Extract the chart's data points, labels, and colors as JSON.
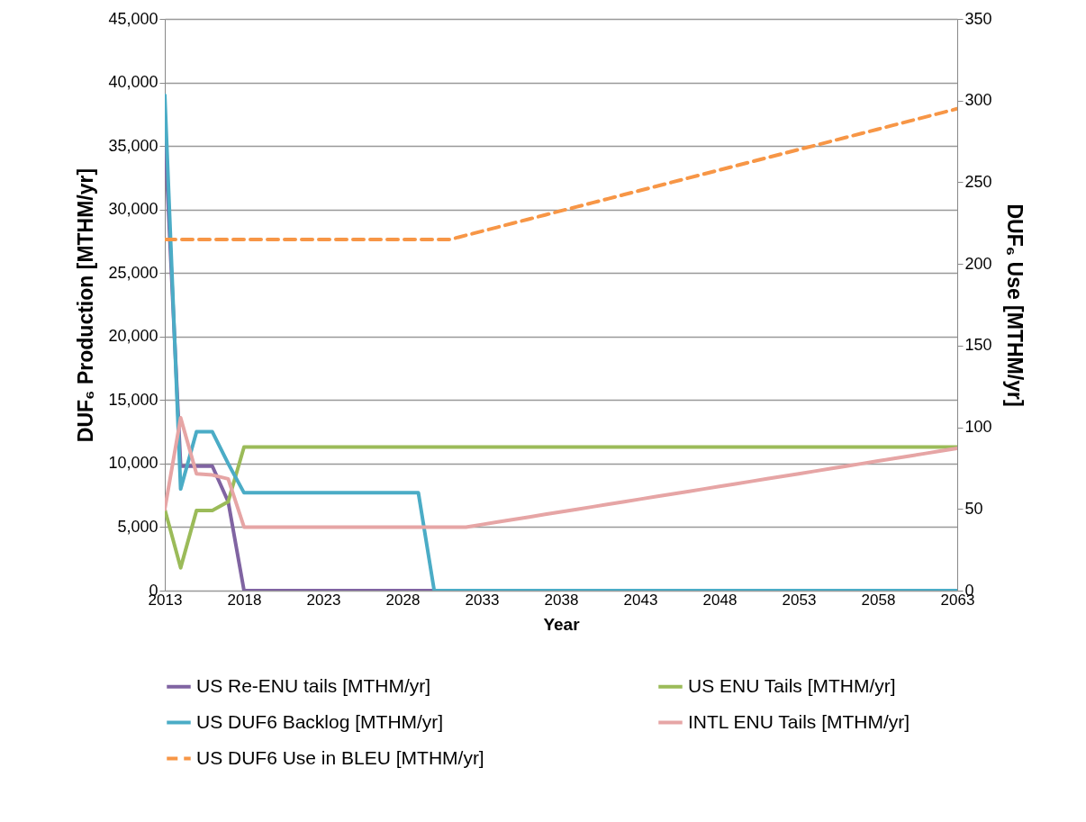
{
  "chart_data": {
    "type": "line",
    "xlabel": "Year",
    "ylabel": "DUF₆ Production [MTHM/yr]",
    "y2label": "DUF₆  Use [MTHM/yr]",
    "x": [
      2013,
      2014,
      2015,
      2016,
      2017,
      2018,
      2019,
      2020,
      2021,
      2022,
      2023,
      2024,
      2025,
      2026,
      2027,
      2028,
      2029,
      2030,
      2031,
      2032,
      2033,
      2034,
      2035,
      2036,
      2037,
      2038,
      2039,
      2040,
      2041,
      2042,
      2043,
      2044,
      2045,
      2046,
      2047,
      2048,
      2049,
      2050,
      2051,
      2052,
      2053,
      2054,
      2055,
      2056,
      2057,
      2058,
      2059,
      2060,
      2061,
      2062,
      2063
    ],
    "xlim": [
      2013,
      2063
    ],
    "xticks": [
      2013,
      2018,
      2023,
      2028,
      2033,
      2038,
      2043,
      2048,
      2053,
      2058,
      2063
    ],
    "ylim": [
      0,
      45000
    ],
    "yticks": [
      0,
      {
        "value": 5000,
        "label": "5,000"
      },
      {
        "value": 10000,
        "label": "10,000"
      },
      {
        "value": 15000,
        "label": "15,000"
      },
      {
        "value": 20000,
        "label": "20,000"
      },
      {
        "value": 25000,
        "label": "25,000"
      },
      {
        "value": 30000,
        "label": "30,000"
      },
      {
        "value": 35000,
        "label": "35,000"
      },
      {
        "value": 40000,
        "label": "40,000"
      },
      {
        "value": 45000,
        "label": "45,000"
      }
    ],
    "y2lim": [
      0,
      350
    ],
    "y2ticks": [
      0,
      50,
      100,
      150,
      200,
      250,
      300,
      350
    ],
    "grid": "y",
    "legend": "bottom",
    "line_style": "solid",
    "series": [
      {
        "name": "US Re-ENU tails [MTHM/yr]",
        "color": "#8064a2",
        "values": [
          36000,
          9800,
          9800,
          9800,
          7000,
          0,
          0,
          0,
          0,
          0,
          0,
          0,
          0,
          0,
          0,
          0,
          0,
          0,
          null,
          null,
          null,
          null,
          null,
          null,
          null,
          null,
          null,
          null,
          null,
          null,
          null,
          null,
          null,
          null,
          null,
          null,
          null,
          null,
          null,
          null,
          null,
          null,
          null,
          null,
          null,
          null,
          null,
          null,
          null,
          null,
          null
        ]
      },
      {
        "name": "US ENU Tails [MTHM/yr]",
        "color": "#9bbb59",
        "values": [
          6400,
          1800,
          6300,
          6300,
          7000,
          11300,
          11300,
          11300,
          11300,
          11300,
          11300,
          11300,
          11300,
          11300,
          11300,
          11300,
          11300,
          11300,
          11300,
          11300,
          11300,
          11300,
          11300,
          11300,
          11300,
          11300,
          11300,
          11300,
          11300,
          11300,
          11300,
          11300,
          11300,
          11300,
          11300,
          11300,
          11300,
          11300,
          11300,
          11300,
          11300,
          11300,
          11300,
          11300,
          11300,
          11300,
          11300,
          11300,
          11300,
          11300,
          11300
        ]
      },
      {
        "name": "US DUF6 Backlog [MTHM/yr]",
        "color": "#4bacc6",
        "values": [
          39000,
          8000,
          12500,
          12500,
          10000,
          7700,
          7700,
          7700,
          7700,
          7700,
          7700,
          7700,
          7700,
          7700,
          7700,
          7700,
          7700,
          0,
          0,
          0,
          0,
          0,
          0,
          0,
          0,
          0,
          0,
          0,
          0,
          0,
          0,
          0,
          0,
          0,
          0,
          0,
          0,
          0,
          0,
          0,
          0,
          0,
          0,
          0,
          0,
          0,
          0,
          0,
          0,
          0,
          0
        ]
      },
      {
        "name": "INTL ENU Tails [MTHM/yr]",
        "color": "#e6a5a5",
        "values": [
          6400,
          13600,
          9200,
          9100,
          8800,
          5000,
          5000,
          5000,
          5000,
          5000,
          5000,
          5000,
          5000,
          5000,
          5000,
          5000,
          5000,
          5000,
          5000,
          5000,
          5200,
          5400,
          5600,
          5800,
          6000,
          6200,
          6400,
          6600,
          6800,
          7000,
          7200,
          7400,
          7600,
          7800,
          8000,
          8200,
          8400,
          8600,
          8800,
          9000,
          9200,
          9400,
          9600,
          9800,
          10000,
          10200,
          10400,
          10600,
          10800,
          11000,
          11200
        ]
      },
      {
        "name": "US DUF6 Use in BLEU [MTHM/yr]",
        "color": "#f79646",
        "axis": "y2",
        "line_style": "dashed",
        "values": [
          215,
          215,
          215,
          215,
          215,
          215,
          215,
          215,
          215,
          215,
          215,
          215,
          215,
          215,
          215,
          215,
          215,
          215,
          215,
          217.5,
          220,
          222.5,
          225,
          227.5,
          230,
          232.5,
          235,
          237.5,
          240,
          242.5,
          245,
          247.5,
          250,
          252.5,
          255,
          257.5,
          260,
          262.5,
          265,
          267.5,
          270,
          272.5,
          275,
          277.5,
          280,
          282.5,
          285,
          287.5,
          290,
          292.5,
          295
        ]
      }
    ]
  }
}
